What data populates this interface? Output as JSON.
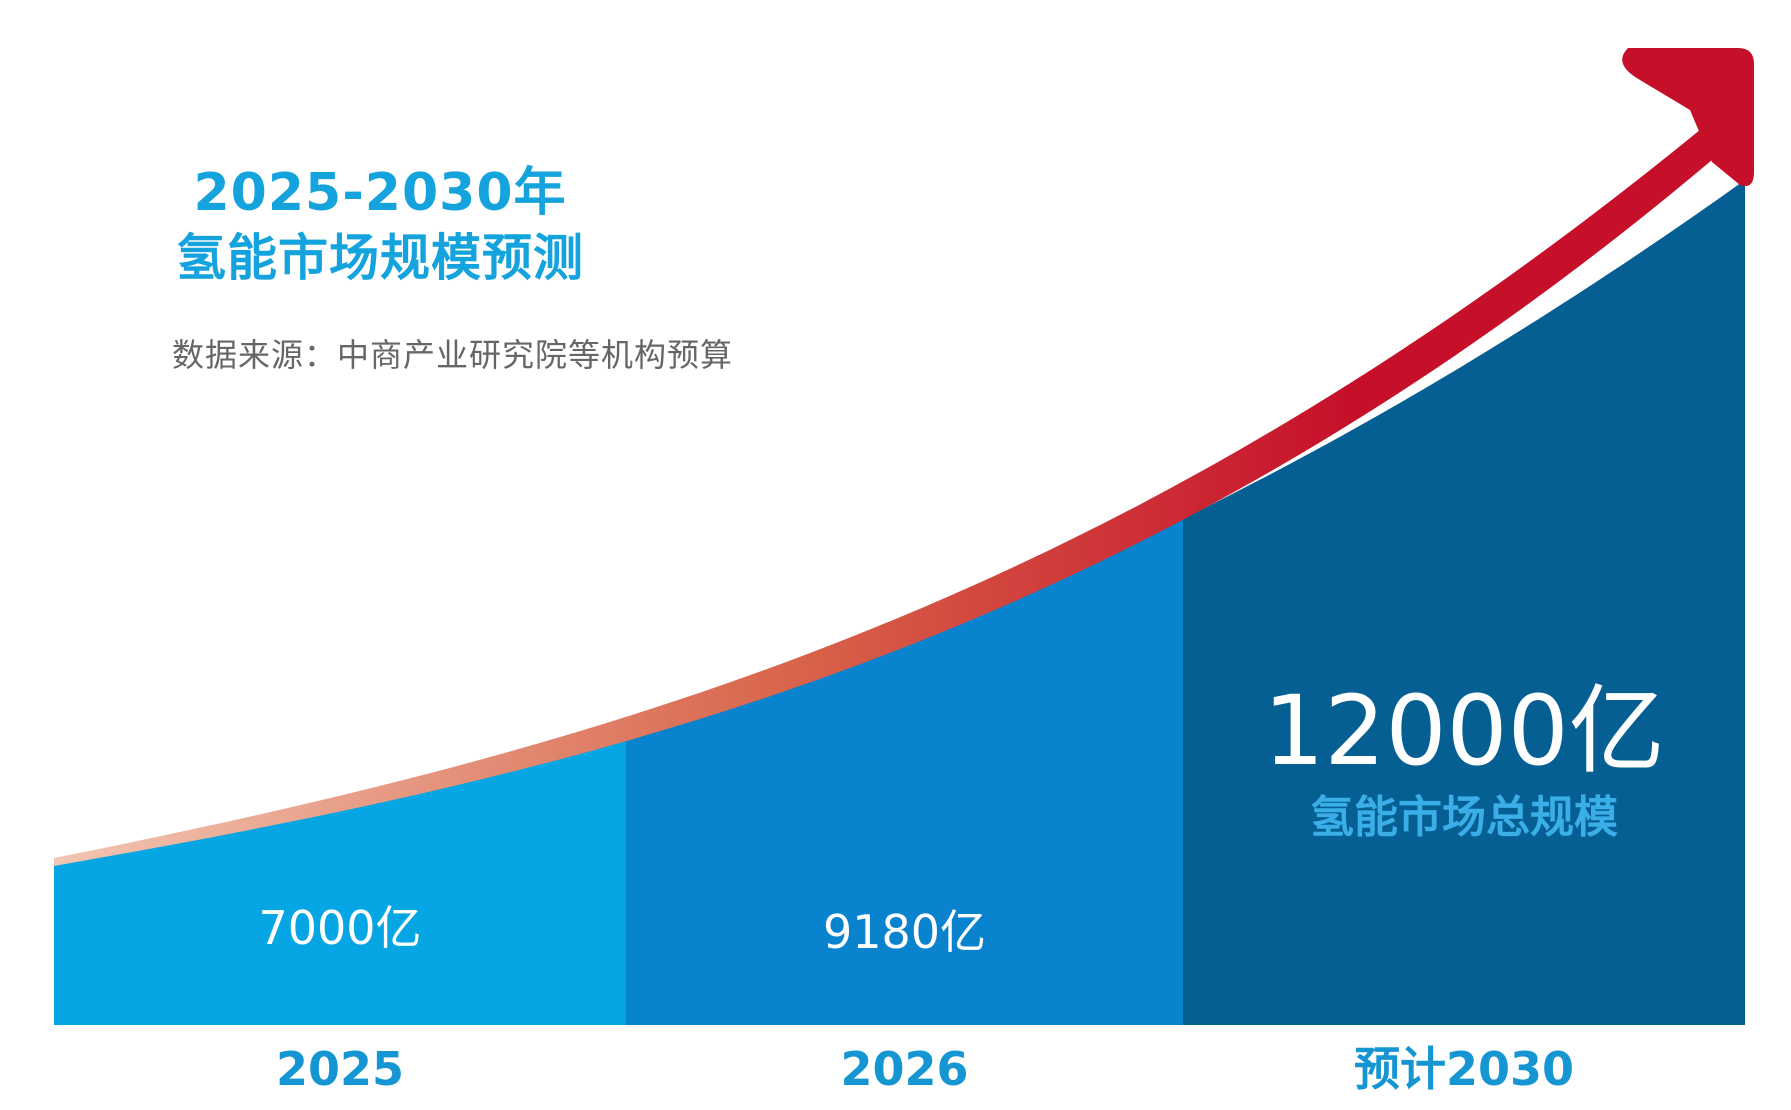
{
  "header": {
    "title_line1": "2025-2030年",
    "title_line2": "氢能市场规模预测",
    "source": "数据来源：中商产业研究院等机构预算"
  },
  "colors": {
    "bar_2025": "#06a6e4",
    "bar_2026": "#0983ce",
    "bar_2030": "#065f93",
    "arrow_start": "#f2c6b2",
    "arrow_mid": "#d8634a",
    "arrow_end": "#c6102a",
    "title": "#14a3dc",
    "axis_label": "#1596d2",
    "highlight_sub": "#3aaee6"
  },
  "chart_data": {
    "type": "area",
    "categories": [
      "2025",
      "2026",
      "预计2030"
    ],
    "values": [
      7000,
      9180,
      12000
    ],
    "value_labels": [
      "7000亿",
      "9180亿",
      "12000亿"
    ],
    "highlight_subtitle": "氢能市场总规模",
    "unit": "亿",
    "ylim": [
      0,
      15000
    ],
    "grid": false,
    "legend": "none"
  }
}
